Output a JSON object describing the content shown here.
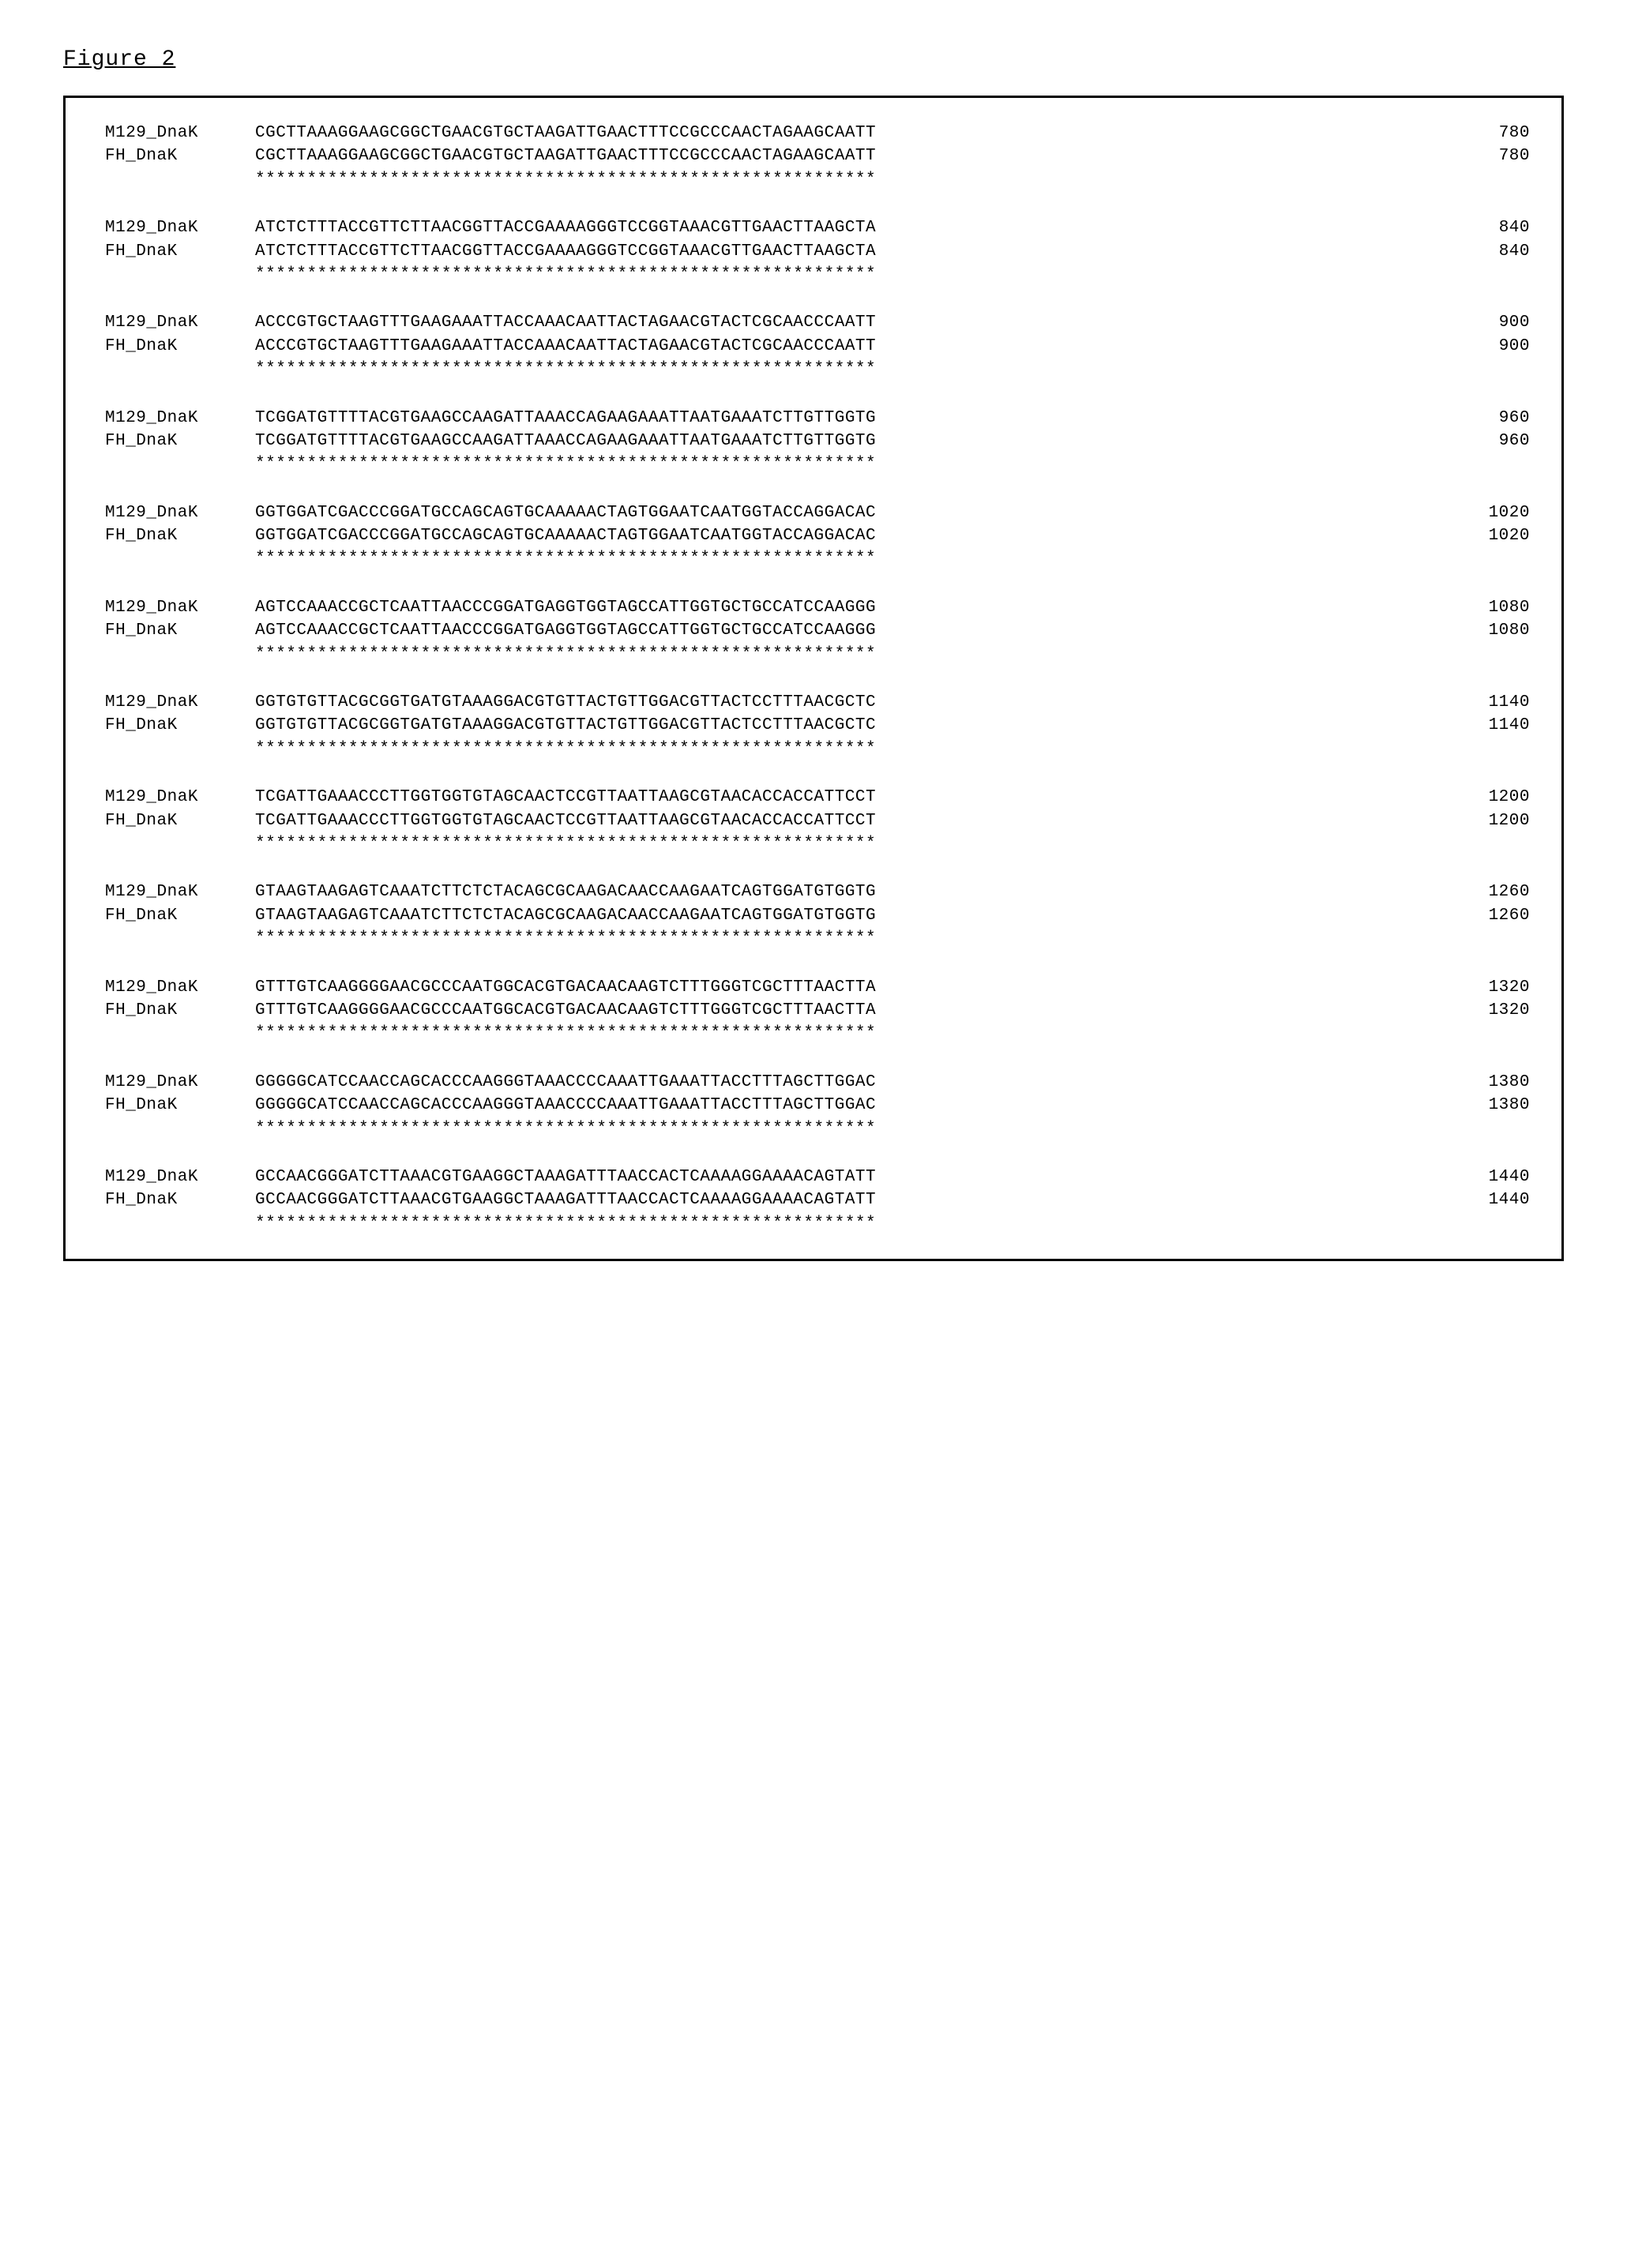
{
  "figure_title": "Figure 2",
  "labels": {
    "seq1": "M129_DnaK",
    "seq2": "FH_DnaK"
  },
  "conservation_char": "*",
  "conservation_length": 60,
  "blocks": [
    {
      "seq1": "CGCTTAAAGGAAGCGGCTGAACGTGCTAAGATTGAACTTTCCGCCCAACTAGAAGCAATT",
      "pos1": "780",
      "seq2": "CGCTTAAAGGAAGCGGCTGAACGTGCTAAGATTGAACTTTCCGCCCAACTAGAAGCAATT",
      "pos2": "780"
    },
    {
      "seq1": "ATCTCTTTACCGTTCTTAACGGTTACCGAAAAGGGTCCGGTAAACGTTGAACTTAAGCTA",
      "pos1": "840",
      "seq2": "ATCTCTTTACCGTTCTTAACGGTTACCGAAAAGGGTCCGGTAAACGTTGAACTTAAGCTA",
      "pos2": "840"
    },
    {
      "seq1": "ACCCGTGCTAAGTTTGAAGAAATTACCAAACAATTACTAGAACGTACTCGCAACCCAATT",
      "pos1": "900",
      "seq2": "ACCCGTGCTAAGTTTGAAGAAATTACCAAACAATTACTAGAACGTACTCGCAACCCAATT",
      "pos2": "900"
    },
    {
      "seq1": "TCGGATGTTTTACGTGAAGCCAAGATTAAACCAGAAGAAATTAATGAAATCTTGTTGGTG",
      "pos1": "960",
      "seq2": "TCGGATGTTTTACGTGAAGCCAAGATTAAACCAGAAGAAATTAATGAAATCTTGTTGGTG",
      "pos2": "960"
    },
    {
      "seq1": "GGTGGATCGACCCGGATGCCAGCAGTGCAAAAACTAGTGGAATCAATGGTACCAGGACAC",
      "pos1": "1020",
      "seq2": "GGTGGATCGACCCGGATGCCAGCAGTGCAAAAACTAGTGGAATCAATGGTACCAGGACAC",
      "pos2": "1020"
    },
    {
      "seq1": "AGTCCAAACCGCTCAATTAACCCGGATGAGGTGGTAGCCATTGGTGCTGCCATCCAAGGG",
      "pos1": "1080",
      "seq2": "AGTCCAAACCGCTCAATTAACCCGGATGAGGTGGTAGCCATTGGTGCTGCCATCCAAGGG",
      "pos2": "1080"
    },
    {
      "seq1": "GGTGTGTTACGCGGTGATGTAAAGGACGTGTTACTGTTGGACGTTACTCCTTTAACGCTC",
      "pos1": "1140",
      "seq2": "GGTGTGTTACGCGGTGATGTAAAGGACGTGTTACTGTTGGACGTTACTCCTTTAACGCTC",
      "pos2": "1140"
    },
    {
      "seq1": "TCGATTGAAACCCTTGGTGGTGTAGCAACTCCGTTAATTAAGCGTAACACCACCATTCCT",
      "pos1": "1200",
      "seq2": "TCGATTGAAACCCTTGGTGGTGTAGCAACTCCGTTAATTAAGCGTAACACCACCATTCCT",
      "pos2": "1200"
    },
    {
      "seq1": "GTAAGTAAGAGTCAAATCTTCTCTACAGCGCAAGACAACCAAGAATCAGTGGATGTGGTG",
      "pos1": "1260",
      "seq2": "GTAAGTAAGAGTCAAATCTTCTCTACAGCGCAAGACAACCAAGAATCAGTGGATGTGGTG",
      "pos2": "1260"
    },
    {
      "seq1": "GTTTGTCAAGGGGAACGCCCAATGGCACGTGACAACAAGTCTTTGGGTCGCTTTAACTTA",
      "pos1": "1320",
      "seq2": "GTTTGTCAAGGGGAACGCCCAATGGCACGTGACAACAAGTCTTTGGGTCGCTTTAACTTA",
      "pos2": "1320"
    },
    {
      "seq1": "GGGGGCATCCAACCAGCACCCAAGGGTAAACCCCAAATTGAAATTACCTTTAGCTTGGAC",
      "pos1": "1380",
      "seq2": "GGGGGCATCCAACCAGCACCCAAGGGTAAACCCCAAATTGAAATTACCTTTAGCTTGGAC",
      "pos2": "1380"
    },
    {
      "seq1": "GCCAACGGGATCTTAAACGTGAAGGCTAAAGATTTAACCACTCAAAAGGAAAACAGTATT",
      "pos1": "1440",
      "seq2": "GCCAACGGGATCTTAAACGTGAAGGCTAAAGATTTAACCACTCAAAAGGAAAACAGTATT",
      "pos2": "1440"
    }
  ],
  "styling": {
    "background_color": "#ffffff",
    "text_color": "#000000",
    "border_color": "#000000",
    "border_width": 3,
    "font_family": "Courier New",
    "title_fontsize": 28,
    "body_fontsize": 21
  }
}
